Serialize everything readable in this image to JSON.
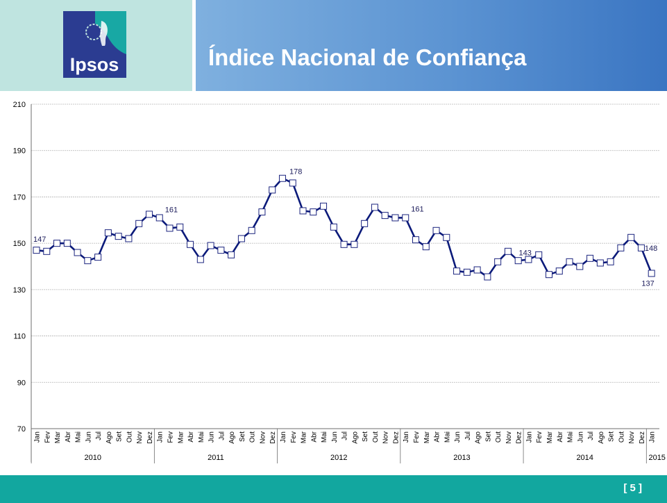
{
  "header": {
    "title": "Índice Nacional de Confiança",
    "logo_text": "Ipsos",
    "colors": {
      "left_panel": "#bfe4e0",
      "right_panel": "#5b93d2",
      "logo_blue": "#2b3c91",
      "logo_teal": "#18a8a4"
    }
  },
  "footer": {
    "page_label": "[ 5 ]",
    "color": "#12a79f"
  },
  "chart_data": {
    "type": "line",
    "title": "",
    "xlabel": "",
    "ylabel": "",
    "ylim": [
      70,
      210
    ],
    "yticks": [
      70,
      90,
      110,
      130,
      150,
      170,
      190,
      210
    ],
    "grid": true,
    "series_color": "#0b1a7a",
    "months": [
      "Jan",
      "Fev",
      "Mar",
      "Abr",
      "Mai",
      "Jun",
      "Jul",
      "Ago",
      "Set",
      "Out",
      "Nov",
      "Dez"
    ],
    "years": [
      "2010",
      "2011",
      "2012",
      "2013",
      "2014",
      "2015"
    ],
    "x": [
      "Jan",
      "Fev",
      "Mar",
      "Abr",
      "Mai",
      "Jun",
      "Jul",
      "Ago",
      "Set",
      "Out",
      "Nov",
      "Dez",
      "Jan",
      "Fev",
      "Mar",
      "Abr",
      "Mai",
      "Jun",
      "Jul",
      "Ago",
      "Set",
      "Out",
      "Nov",
      "Dez",
      "Jan",
      "Fev",
      "Mar",
      "Abr",
      "Mai",
      "Jun",
      "Jul",
      "Ago",
      "Set",
      "Out",
      "Nov",
      "Dez",
      "Jan",
      "Fev",
      "Mar",
      "Abr",
      "Mai",
      "Jun",
      "Jul",
      "Ago",
      "Set",
      "Out",
      "Nov",
      "Dez",
      "Jan",
      "Fev",
      "Mar",
      "Abr",
      "Mai",
      "Jun",
      "Jul",
      "Ago",
      "Set",
      "Out",
      "Nov",
      "Dez",
      "Jan"
    ],
    "values": [
      147,
      146.5,
      150,
      150,
      146,
      142.5,
      144,
      154.5,
      153,
      152,
      158.5,
      162.5,
      161,
      156.5,
      157,
      149.5,
      143,
      149,
      147,
      145,
      152,
      155.5,
      163.5,
      173,
      178,
      176,
      164,
      163.5,
      166,
      157,
      149.5,
      149.5,
      158.5,
      165.5,
      162,
      161,
      161,
      151.5,
      148.5,
      155.5,
      152.5,
      138,
      137.5,
      138.5,
      135.5,
      142,
      146.5,
      142.5,
      143,
      145,
      136.5,
      138,
      142,
      140,
      143.5,
      141.5,
      142,
      148,
      152.5,
      148,
      137
    ],
    "data_labels": [
      {
        "index": 0,
        "text": "147"
      },
      {
        "index": 12,
        "text": "161"
      },
      {
        "index": 24,
        "text": "178"
      },
      {
        "index": 36,
        "text": "161"
      },
      {
        "index": 48,
        "text": "143"
      },
      {
        "index": 59,
        "text": "148"
      },
      {
        "index": 60,
        "text": "137"
      }
    ]
  }
}
